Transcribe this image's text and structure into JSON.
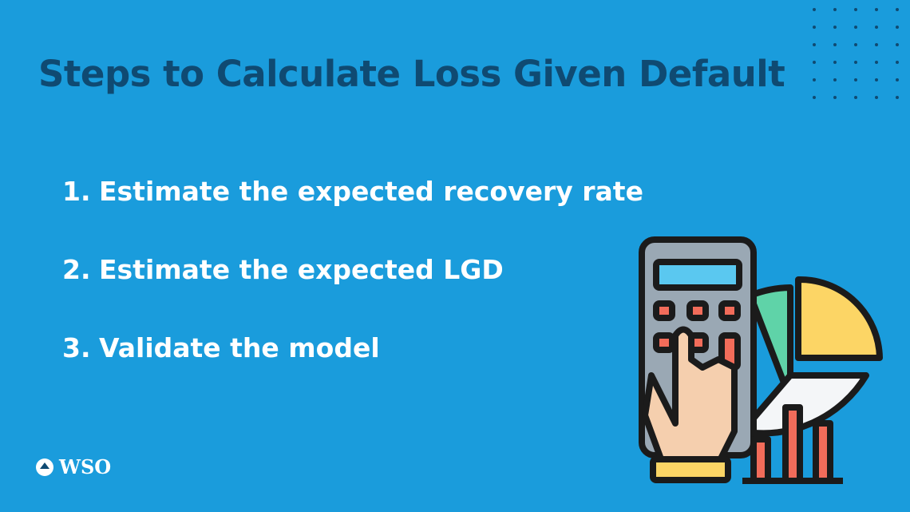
{
  "header": {
    "title": "Steps to Calculate Loss Given Default"
  },
  "steps": [
    {
      "number": "1.",
      "text": "Estimate the expected recovery rate"
    },
    {
      "number": "2.",
      "text": "Estimate the expected LGD"
    },
    {
      "number": "3.",
      "text": "Validate the model"
    }
  ],
  "logo": {
    "text": "WSO"
  }
}
